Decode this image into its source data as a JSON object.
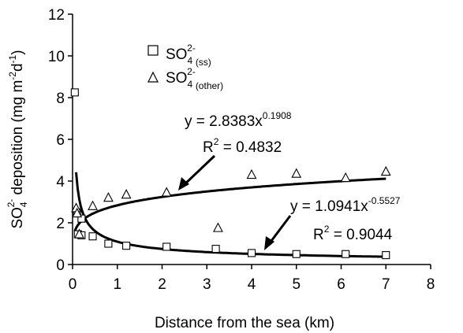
{
  "chart_data": {
    "type": "scatter",
    "xlabel": "Distance from the sea (km)",
    "ylabel": {
      "base": "SO",
      "sub": "4",
      "sup": "2-",
      "rest": " deposition (mg m",
      "exp1": "-2",
      "mid": "d",
      "exp2": "-1",
      "close": ")"
    },
    "xlim": [
      0,
      8
    ],
    "ylim": [
      0,
      12
    ],
    "xticks": [
      0,
      1,
      2,
      3,
      4,
      5,
      6,
      7,
      8
    ],
    "yticks": [
      0,
      2,
      4,
      6,
      8,
      10,
      12
    ],
    "grid": false,
    "legend_position": "top-center",
    "series": [
      {
        "name": "SO4 2- (ss)",
        "legend_base": "SO",
        "legend_sub": "4",
        "legend_sup": "2-",
        "legend_tag": "(ss)",
        "marker": "square",
        "points": [
          [
            0.05,
            8.25
          ],
          [
            0.1,
            2.5
          ],
          [
            0.12,
            1.45
          ],
          [
            0.2,
            2.2
          ],
          [
            0.2,
            1.4
          ],
          [
            0.45,
            1.35
          ],
          [
            0.8,
            1.0
          ],
          [
            1.2,
            0.9
          ],
          [
            2.1,
            0.85
          ],
          [
            3.2,
            0.75
          ],
          [
            4.0,
            0.55
          ],
          [
            5.0,
            0.5
          ],
          [
            6.1,
            0.5
          ],
          [
            7.0,
            0.45
          ]
        ],
        "fit": {
          "a": 1.0941,
          "b": -0.5527,
          "x_start": 0.08,
          "x_end": 7.0
        }
      },
      {
        "name": "SO4 2- (other)",
        "legend_base": "SO",
        "legend_sub": "4",
        "legend_sup": "2-",
        "legend_tag": "(other)",
        "marker": "triangle",
        "points": [
          [
            0.08,
            2.7
          ],
          [
            0.1,
            2.45
          ],
          [
            0.15,
            1.45
          ],
          [
            0.45,
            2.8
          ],
          [
            0.8,
            3.2
          ],
          [
            1.2,
            3.35
          ],
          [
            2.1,
            3.45
          ],
          [
            3.25,
            1.75
          ],
          [
            4.0,
            4.3
          ],
          [
            5.0,
            4.35
          ],
          [
            6.1,
            4.15
          ],
          [
            7.0,
            4.45
          ]
        ],
        "fit": {
          "a": 2.8383,
          "b": 0.1908,
          "x_start": 0.05,
          "x_end": 7.0
        }
      }
    ],
    "annotations": [
      {
        "eq_prefix": "y = 2.8383x",
        "eq_exp": "0.1908",
        "r2_prefix": "R",
        "r2_sup": "2",
        "r2_value": " = 0.4832"
      },
      {
        "eq_prefix": "y = 1.0941x",
        "eq_exp": "-0.5527",
        "r2_prefix": "R",
        "r2_sup": "2",
        "r2_value": " = 0.9044"
      }
    ]
  }
}
